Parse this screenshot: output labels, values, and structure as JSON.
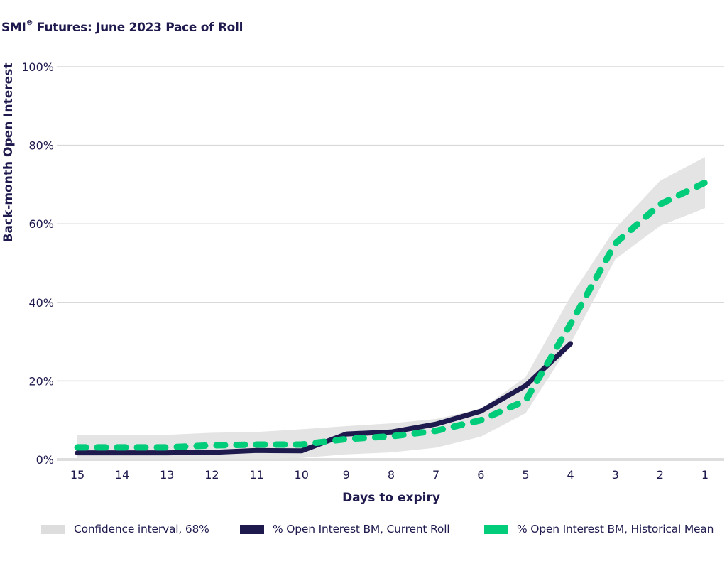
{
  "title": {
    "main": "SMI",
    "superscript": "®",
    "rest": " Futures: June 2023 Pace of Roll"
  },
  "colors": {
    "text": "#1e1a4d",
    "grid": "#d9d9d9",
    "band": "#e3e3e3",
    "current": "#1e1a4d",
    "mean": "#00cc7a"
  },
  "chart_data": {
    "type": "line",
    "title": "SMI® Futures: June 2023 Pace of Roll",
    "xlabel": "Days to expiry",
    "ylabel": "Back-month Open Interest",
    "x": [
      15,
      14,
      13,
      12,
      11,
      10,
      9,
      8,
      7,
      6,
      5,
      4,
      3,
      2,
      1
    ],
    "x_tick_labels": [
      "15",
      "14",
      "13",
      "12",
      "11",
      "10",
      "9",
      "8",
      "7",
      "6",
      "5",
      "4",
      "3",
      "2",
      "1"
    ],
    "y_ticks": [
      0,
      20,
      40,
      60,
      80,
      100
    ],
    "y_tick_labels": [
      "0%",
      "20%",
      "40%",
      "60%",
      "80%",
      "100%"
    ],
    "ylim": [
      0,
      100
    ],
    "grid": "horizontal",
    "legend_position": "bottom",
    "series": [
      {
        "name": "Confidence interval, 68%",
        "kind": "band",
        "lower": [
          0,
          0,
          0,
          0,
          0,
          0.4,
          1.3,
          1.8,
          3.0,
          5.8,
          11.8,
          29.5,
          51.0,
          59.5,
          64.0
        ],
        "upper": [
          6.3,
          6.3,
          6.3,
          6.8,
          7.0,
          7.7,
          8.5,
          9.2,
          10.3,
          12.8,
          21.0,
          41.5,
          58.8,
          71.0,
          77.0
        ]
      },
      {
        "name": "% Open Interest BM, Current Roll",
        "kind": "line",
        "style": "solid",
        "values": [
          1.7,
          1.7,
          1.7,
          1.8,
          2.3,
          2.2,
          6.5,
          7.0,
          9.0,
          12.3,
          18.8,
          29.5,
          null,
          null,
          null
        ]
      },
      {
        "name": "% Open Interest BM, Historical Mean",
        "kind": "line",
        "style": "dashed",
        "values": [
          3.1,
          3.1,
          3.1,
          3.6,
          3.8,
          3.8,
          5.2,
          5.9,
          7.3,
          10.0,
          15.0,
          34.5,
          55.0,
          65.0,
          70.5
        ]
      }
    ]
  },
  "legend": [
    {
      "label": "Confidence interval, 68%",
      "color": "#e3e3e3"
    },
    {
      "label": "% Open Interest BM, Current Roll",
      "color": "#1e1a4d"
    },
    {
      "label": "% Open Interest BM, Historical Mean",
      "color": "#00cc7a"
    }
  ]
}
